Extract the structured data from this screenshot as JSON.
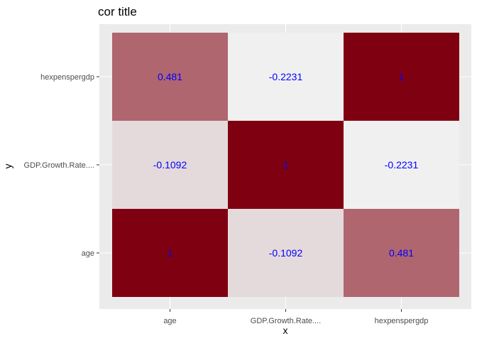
{
  "chart_data": {
    "type": "heatmap",
    "title": "cor title",
    "xlabel": "x",
    "ylabel": "y",
    "x_categories": [
      "age",
      "GDP.Growth.Rate....",
      "hexpenspergdp"
    ],
    "y_categories": [
      "age",
      "GDP.Growth.Rate....",
      "hexpenspergdp"
    ],
    "cells": [
      {
        "x": "age",
        "y": "age",
        "value": 1,
        "label": "1"
      },
      {
        "x": "GDP.Growth.Rate....",
        "y": "age",
        "value": -0.1092,
        "label": "-0.1092"
      },
      {
        "x": "hexpenspergdp",
        "y": "age",
        "value": 0.481,
        "label": "0.481"
      },
      {
        "x": "age",
        "y": "GDP.Growth.Rate....",
        "value": -0.1092,
        "label": "-0.1092"
      },
      {
        "x": "GDP.Growth.Rate....",
        "y": "GDP.Growth.Rate....",
        "value": 1,
        "label": "1"
      },
      {
        "x": "hexpenspergdp",
        "y": "GDP.Growth.Rate....",
        "value": -0.2231,
        "label": "-0.2231"
      },
      {
        "x": "age",
        "y": "hexpenspergdp",
        "value": 0.481,
        "label": "0.481"
      },
      {
        "x": "GDP.Growth.Rate....",
        "y": "hexpenspergdp",
        "value": -0.2231,
        "label": "-0.2231"
      },
      {
        "x": "hexpenspergdp",
        "y": "hexpenspergdp",
        "value": 1,
        "label": "1"
      }
    ],
    "value_range": [
      -0.2231,
      1
    ],
    "grid": true,
    "legend": "none"
  },
  "colors": {
    "low": "#f0f0f0",
    "high": "#7f0010",
    "panel_background": "#ebebeb",
    "gridline": "#ffffff",
    "cell_text": "#0000ff"
  }
}
